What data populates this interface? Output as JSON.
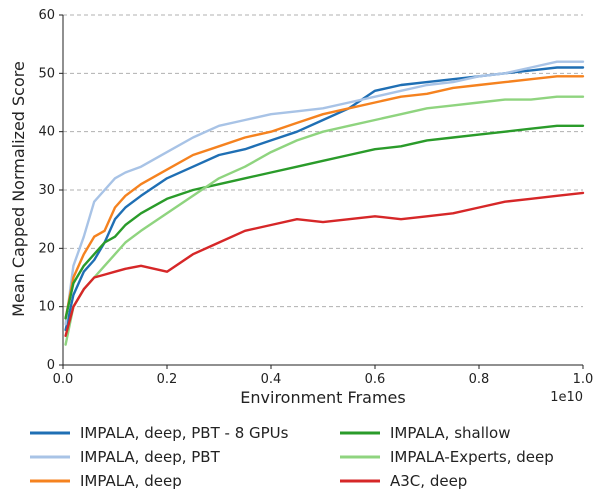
{
  "chart_data": {
    "type": "line",
    "title": "",
    "xlabel": "Environment Frames",
    "ylabel": "Mean Capped Normalized Score",
    "x_offset_label": "1e10",
    "xlim": [
      0,
      1.0
    ],
    "ylim": [
      0,
      60
    ],
    "x_ticks": [
      "0.0",
      "0.2",
      "0.4",
      "0.6",
      "0.8",
      "1.0"
    ],
    "x_tick_values": [
      0,
      0.2,
      0.4,
      0.6,
      0.8,
      1.0
    ],
    "y_ticks": [
      "0",
      "10",
      "20",
      "30",
      "40",
      "50",
      "60"
    ],
    "y_tick_values": [
      0,
      10,
      20,
      30,
      40,
      50,
      60
    ],
    "grid": "horizontal dashed",
    "legend_position": "below",
    "series": [
      {
        "name": "IMPALA, deep, PBT - 8 GPUs",
        "color": "#1f6fb4",
        "x": [
          0.005,
          0.02,
          0.04,
          0.06,
          0.08,
          0.1,
          0.12,
          0.15,
          0.2,
          0.25,
          0.3,
          0.35,
          0.4,
          0.45,
          0.5,
          0.55,
          0.6,
          0.65,
          0.7,
          0.75,
          0.8,
          0.85,
          0.9,
          0.95,
          1.0
        ],
        "y": [
          6,
          12,
          16,
          18,
          21,
          25,
          27,
          29,
          32,
          34,
          36,
          37,
          38.5,
          40,
          42,
          44,
          47,
          48,
          48.5,
          49,
          49.5,
          50,
          50.5,
          51,
          51
        ]
      },
      {
        "name": "IMPALA, deep, PBT",
        "color": "#a8c3e6",
        "x": [
          0.005,
          0.02,
          0.04,
          0.06,
          0.08,
          0.1,
          0.12,
          0.15,
          0.2,
          0.25,
          0.3,
          0.35,
          0.4,
          0.45,
          0.5,
          0.55,
          0.6,
          0.65,
          0.7,
          0.75,
          0.8,
          0.85,
          0.9,
          0.95,
          1.0
        ],
        "y": [
          7,
          17,
          22,
          28,
          30,
          32,
          33,
          34,
          36.5,
          39,
          41,
          42,
          43,
          43.5,
          44,
          45,
          46,
          47,
          48,
          48.5,
          49.5,
          50,
          51,
          52,
          52
        ]
      },
      {
        "name": "IMPALA, deep",
        "color": "#f5821f",
        "x": [
          0.005,
          0.02,
          0.04,
          0.06,
          0.08,
          0.1,
          0.12,
          0.15,
          0.2,
          0.25,
          0.3,
          0.35,
          0.4,
          0.45,
          0.5,
          0.55,
          0.6,
          0.65,
          0.7,
          0.75,
          0.8,
          0.85,
          0.9,
          0.95,
          1.0
        ],
        "y": [
          8,
          15,
          19,
          22,
          23,
          27,
          29,
          31,
          33.5,
          36,
          37.5,
          39,
          40,
          41.5,
          43,
          44,
          45,
          46,
          46.5,
          47.5,
          48,
          48.5,
          49,
          49.5,
          49.5
        ]
      },
      {
        "name": "IMPALA, shallow",
        "color": "#2a9b2a",
        "x": [
          0.005,
          0.02,
          0.04,
          0.06,
          0.08,
          0.1,
          0.12,
          0.15,
          0.2,
          0.25,
          0.3,
          0.35,
          0.4,
          0.45,
          0.5,
          0.55,
          0.6,
          0.65,
          0.7,
          0.75,
          0.8,
          0.85,
          0.9,
          0.95,
          1.0
        ],
        "y": [
          8,
          14,
          17,
          19,
          21,
          22,
          24,
          26,
          28.5,
          30,
          31,
          32,
          33,
          34,
          35,
          36,
          37,
          37.5,
          38.5,
          39,
          39.5,
          40,
          40.5,
          41,
          41
        ]
      },
      {
        "name": "IMPALA-Experts, deep",
        "color": "#8fd47f",
        "x": [
          0.005,
          0.02,
          0.04,
          0.06,
          0.08,
          0.1,
          0.12,
          0.15,
          0.2,
          0.25,
          0.3,
          0.35,
          0.4,
          0.45,
          0.5,
          0.55,
          0.6,
          0.65,
          0.7,
          0.75,
          0.8,
          0.85,
          0.9,
          0.95,
          1.0
        ],
        "y": [
          3.5,
          10,
          13,
          15,
          17,
          19,
          21,
          23,
          26,
          29,
          32,
          34,
          36.5,
          38.5,
          40,
          41,
          42,
          43,
          44,
          44.5,
          45,
          45.5,
          45.5,
          46,
          46
        ]
      },
      {
        "name": "A3C, deep",
        "color": "#d62728",
        "x": [
          0.005,
          0.02,
          0.04,
          0.06,
          0.08,
          0.1,
          0.12,
          0.15,
          0.2,
          0.25,
          0.3,
          0.35,
          0.4,
          0.45,
          0.5,
          0.55,
          0.6,
          0.65,
          0.7,
          0.75,
          0.8,
          0.85,
          0.9,
          0.95,
          1.0
        ],
        "y": [
          5,
          10,
          13,
          15,
          15.5,
          16,
          16.5,
          17,
          16,
          19,
          21,
          23,
          24,
          25,
          24.5,
          25,
          25.5,
          25,
          25.5,
          26,
          27,
          28,
          28.5,
          29,
          29.5
        ]
      }
    ]
  }
}
